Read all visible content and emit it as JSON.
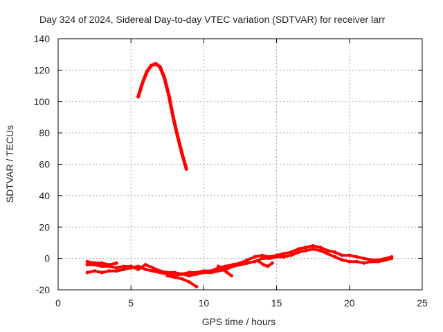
{
  "chart_data": {
    "type": "line",
    "title": "Day 324 of 2024, Sidereal Day-to-day VTEC variation (SDTVAR) for receiver larr",
    "xlabel": "GPS time / hours",
    "ylabel": "SDTVAR / TECUs",
    "xlim": [
      0,
      25
    ],
    "ylim": [
      -20,
      140
    ],
    "x_ticks": [
      0,
      5,
      10,
      15,
      20,
      25
    ],
    "y_ticks": [
      -20,
      0,
      20,
      40,
      60,
      80,
      100,
      120,
      140
    ],
    "grid": true,
    "color": "#ff0000",
    "series": [
      {
        "x": [
          5.5,
          5.8,
          6.1,
          6.4,
          6.7,
          7.0,
          7.3,
          7.6,
          7.9,
          8.2,
          8.5,
          8.8
        ],
        "y": [
          103,
          112,
          119,
          123,
          124,
          122,
          115,
          104,
          90,
          78,
          67,
          57
        ]
      },
      {
        "x": [
          2.0,
          2.5,
          3.0,
          3.5,
          4.0,
          4.5,
          5.0,
          5.5,
          6.0,
          6.5,
          7.0,
          7.5,
          8.0,
          8.5,
          9.0,
          9.5,
          10.0,
          10.5,
          11.0,
          11.5,
          12.0,
          12.5,
          13.0,
          13.5,
          14.0,
          14.5,
          15.0,
          15.5,
          16.0,
          16.5,
          17.0,
          17.5,
          18.0,
          18.5,
          19.0,
          19.5,
          20.0,
          20.5,
          21.0,
          21.5,
          22.0,
          22.5,
          22.9
        ],
        "y": [
          -4,
          -4,
          -5,
          -5,
          -6,
          -5,
          -5,
          -7,
          -4,
          -6,
          -8,
          -9,
          -9,
          -10,
          -9,
          -9,
          -8,
          -8,
          -6,
          -5,
          -4,
          -3,
          -1,
          1,
          2,
          1,
          2,
          3,
          4,
          6,
          7,
          8,
          7,
          5,
          4,
          2,
          2,
          1,
          0,
          -1,
          -1,
          0,
          1
        ]
      },
      {
        "x": [
          2.0,
          2.5,
          3.0,
          3.5,
          4.0,
          4.5,
          5.0,
          5.5,
          6.0,
          6.5,
          7.0,
          7.5,
          8.0,
          8.5,
          9.0,
          9.5,
          10.0,
          10.5,
          11.0,
          11.5,
          12.0,
          12.5,
          13.0,
          13.5,
          14.0,
          14.5,
          15.0,
          15.5,
          16.0,
          16.5,
          17.0,
          17.5,
          18.0,
          18.5,
          19.0,
          19.5,
          20.0,
          20.5,
          21.0,
          21.5,
          22.0,
          22.5,
          22.9
        ],
        "y": [
          -9,
          -8,
          -9,
          -8,
          -8,
          -7,
          -6,
          -5,
          -7,
          -8,
          -9,
          -10,
          -11,
          -10,
          -11,
          -10,
          -9,
          -9,
          -8,
          -7,
          -5,
          -4,
          -3,
          -2,
          0,
          0,
          1,
          1,
          2,
          4,
          5,
          6,
          5,
          3,
          1,
          -1,
          -2,
          -2,
          -3,
          -2,
          -2,
          -1,
          0
        ]
      },
      {
        "x": [
          2.0,
          2.5,
          3.0,
          3.5,
          4.0
        ],
        "y": [
          -2,
          -3,
          -3,
          -4,
          -3
        ]
      },
      {
        "x": [
          7.5,
          8.0,
          8.5,
          9.0,
          9.5
        ],
        "y": [
          -11,
          -12,
          -13,
          -15,
          -18
        ]
      },
      {
        "x": [
          11.0,
          11.3,
          11.6,
          11.9
        ],
        "y": [
          -5,
          -7,
          -9,
          -11
        ]
      },
      {
        "x": [
          13.8,
          14.1,
          14.4,
          14.7
        ],
        "y": [
          -2,
          -4,
          -5,
          -3
        ]
      }
    ]
  }
}
